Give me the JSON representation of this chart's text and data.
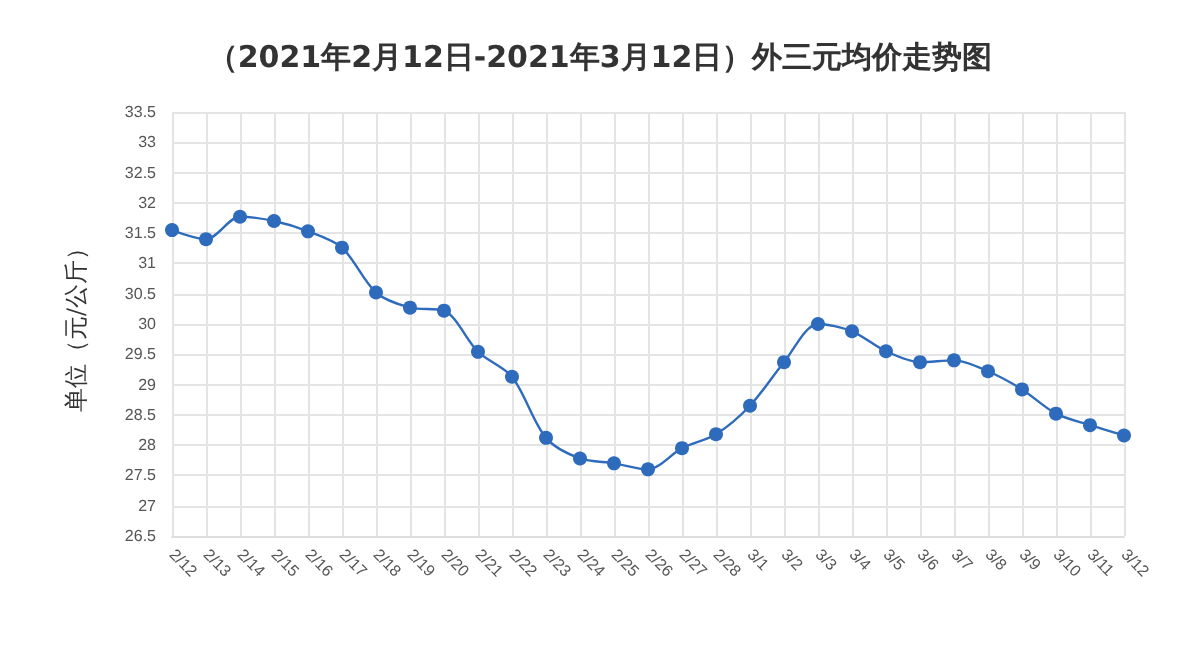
{
  "chart_data": {
    "type": "line",
    "title": "（2021年2月12日-2021年3月12日）外三元均价走势图",
    "ylabel": "单位（元/公斤）",
    "categories": [
      "2/12",
      "2/13",
      "2/14",
      "2/15",
      "2/16",
      "2/17",
      "2/18",
      "2/19",
      "2/20",
      "2/21",
      "2/22",
      "2/23",
      "2/24",
      "2/25",
      "2/26",
      "2/27",
      "2/28",
      "3/1",
      "3/2",
      "3/3",
      "3/4",
      "3/5",
      "3/6",
      "3/7",
      "3/8",
      "3/9",
      "3/10",
      "3/11",
      "3/12"
    ],
    "series": [
      {
        "color": "#2e6bbd",
        "values": [
          31.55,
          31.4,
          31.77,
          31.7,
          31.53,
          31.26,
          30.52,
          30.27,
          30.22,
          29.54,
          29.13,
          28.12,
          27.78,
          27.7,
          27.6,
          27.95,
          28.18,
          28.65,
          29.37,
          30.0,
          29.88,
          29.55,
          29.37,
          29.4,
          29.22,
          28.92,
          28.52,
          28.33,
          28.16
        ]
      }
    ],
    "ylim": [
      26.5,
      33.5
    ],
    "yticks": [
      26.5,
      27,
      27.5,
      28,
      28.5,
      29,
      29.5,
      30,
      30.5,
      31,
      31.5,
      32,
      32.5,
      33,
      33.5
    ],
    "grid": true,
    "marker": "circle",
    "line_style": "solid"
  }
}
